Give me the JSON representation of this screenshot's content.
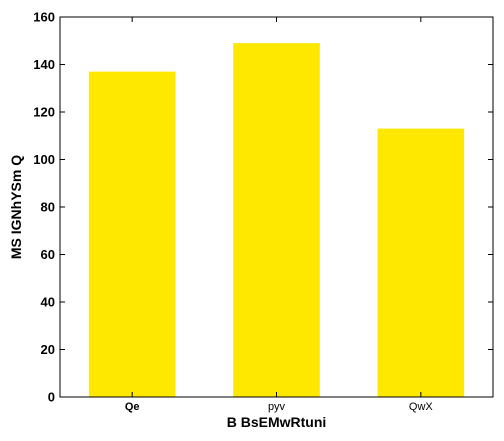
{
  "chart_data": {
    "type": "bar",
    "categories": [
      "Qe",
      "pyv",
      "QwX"
    ],
    "bold_categories": [
      "Qe"
    ],
    "values": [
      137,
      149,
      113
    ],
    "xlabel": "B BsEMwRtuni",
    "ylabel": "MS IGNhYSm Q",
    "ylim": [
      0,
      160
    ],
    "yticks": [
      0,
      20,
      40,
      60,
      80,
      100,
      120,
      140,
      160
    ],
    "bar_color": "#ffe800",
    "grid": false,
    "legend": "none"
  }
}
